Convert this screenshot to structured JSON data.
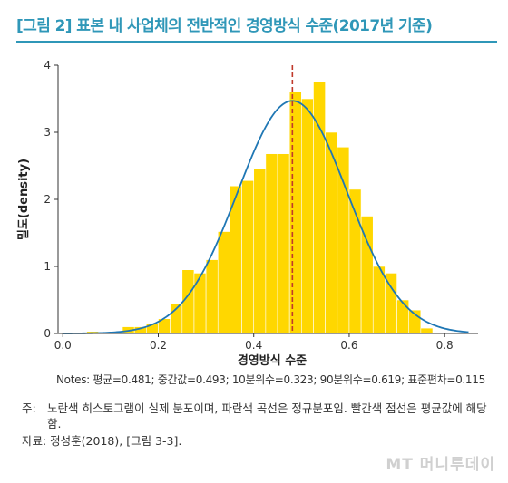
{
  "figure_title": "[그림 2] 표본 내 사업체의 전반적인 경영방식 수준(2017년 기준)",
  "notes": "Notes: 평균=0.481; 중간값=0.493; 10분위수=0.323; 90분위수=0.619; 표준편차=0.115",
  "footnote": {
    "label": "주:",
    "text": "노란색 히스토그램이 실제 분포이며, 파란색 곡선은 정규분포임. 빨간색 점선은 평균값에 해당함."
  },
  "source": "자료: 정성훈(2018), [그림 3-3].",
  "watermark": "MT 머니투데이",
  "colors": {
    "bars": "#ffd700",
    "curve": "#1f77b4",
    "mean_line": "#c0392b",
    "title": "#2f97b8"
  },
  "chart_data": {
    "type": "bar",
    "xlabel": "경영방식 수준",
    "ylabel": "밀도(density)",
    "xlim": [
      -0.01,
      0.87
    ],
    "ylim": [
      0,
      4
    ],
    "xticks": [
      0.0,
      0.2,
      0.4,
      0.6,
      0.8
    ],
    "xtick_labels": [
      "0.0",
      "0.2",
      "0.4",
      "0.6",
      "0.8"
    ],
    "yticks": [
      0,
      1,
      2,
      3,
      4
    ],
    "ytick_labels": [
      "0",
      "1",
      "2",
      "3",
      "4"
    ],
    "bin_width": 0.025,
    "histogram": {
      "bin_starts": [
        0.05,
        0.125,
        0.15,
        0.175,
        0.2,
        0.225,
        0.25,
        0.275,
        0.3,
        0.325,
        0.35,
        0.375,
        0.4,
        0.425,
        0.45,
        0.475,
        0.5,
        0.525,
        0.55,
        0.575,
        0.6,
        0.625,
        0.65,
        0.675,
        0.7,
        0.725,
        0.75
      ],
      "density": [
        0.03,
        0.1,
        0.1,
        0.15,
        0.22,
        0.45,
        0.95,
        0.9,
        1.1,
        1.52,
        2.2,
        2.28,
        2.45,
        2.68,
        2.68,
        3.6,
        3.5,
        3.75,
        3.0,
        2.78,
        2.15,
        1.75,
        1.0,
        0.9,
        0.5,
        0.35,
        0.08
      ]
    },
    "normal_curve": {
      "mean": 0.481,
      "sd": 0.115
    },
    "mean_line": {
      "x": 0.481,
      "style": "dashed"
    },
    "grid": false,
    "legend": "none"
  }
}
